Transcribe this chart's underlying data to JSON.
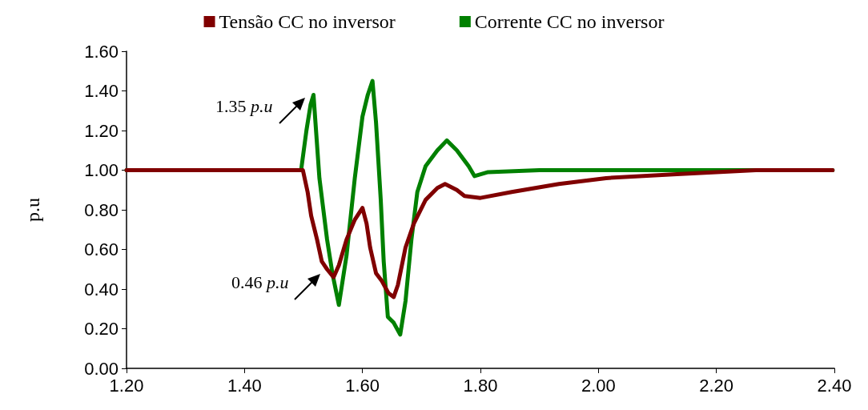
{
  "chart_data": {
    "type": "line",
    "ylabel": "p.u",
    "xlim": [
      1.2,
      2.4
    ],
    "xticks": [
      {
        "value": 1.2,
        "label": "1.20"
      },
      {
        "value": 1.4,
        "label": "1.40"
      },
      {
        "value": 1.6,
        "label": "1.60"
      },
      {
        "value": 1.8,
        "label": "1.80"
      },
      {
        "value": 2.0,
        "label": "2.00"
      },
      {
        "value": 2.2,
        "label": "2.20"
      },
      {
        "value": 2.4,
        "label": "2.40"
      }
    ],
    "ylim": [
      0,
      1.6
    ],
    "yticks": [
      {
        "value": 0,
        "label": "0.00"
      },
      {
        "value": 0.2,
        "label": "0.20"
      },
      {
        "value": 0.4,
        "label": "0.40"
      },
      {
        "value": 0.6,
        "label": "0.60"
      },
      {
        "value": 0.8,
        "label": "0.80"
      },
      {
        "value": 1.0,
        "label": "1.00"
      },
      {
        "value": 1.2,
        "label": "1.20"
      },
      {
        "value": 1.4,
        "label": "1.40"
      },
      {
        "value": 1.6,
        "label": "1.60"
      }
    ],
    "grid": false,
    "legend": "top",
    "marker": "none",
    "line_style": "solid",
    "series": [
      {
        "name": "Tensão CC no inversor",
        "color": "#800000",
        "x": [
          1.2,
          1.499,
          1.507,
          1.513,
          1.523,
          1.531,
          1.54,
          1.551,
          1.56,
          1.573,
          1.587,
          1.6,
          1.607,
          1.613,
          1.623,
          1.633,
          1.644,
          1.653,
          1.66,
          1.673,
          1.687,
          1.707,
          1.727,
          1.74,
          1.76,
          1.773,
          1.8,
          1.853,
          1.933,
          2.013,
          2.133,
          2.267,
          2.397
        ],
        "values": [
          1.0,
          1.0,
          0.89,
          0.77,
          0.65,
          0.54,
          0.5,
          0.46,
          0.52,
          0.65,
          0.75,
          0.81,
          0.73,
          0.61,
          0.48,
          0.44,
          0.38,
          0.36,
          0.42,
          0.61,
          0.73,
          0.85,
          0.91,
          0.93,
          0.9,
          0.87,
          0.86,
          0.89,
          0.93,
          0.96,
          0.98,
          1.0,
          1.0
        ]
      },
      {
        "name": "Corrente CC no inversor",
        "color": "#008000",
        "x": [
          1.2,
          1.496,
          1.505,
          1.512,
          1.517,
          1.527,
          1.54,
          1.549,
          1.56,
          1.573,
          1.587,
          1.6,
          1.609,
          1.617,
          1.623,
          1.631,
          1.636,
          1.643,
          1.653,
          1.664,
          1.673,
          1.683,
          1.693,
          1.707,
          1.727,
          1.743,
          1.76,
          1.78,
          1.79,
          1.813,
          1.9,
          2.0,
          2.2,
          2.397
        ],
        "values": [
          1.0,
          1.0,
          1.2,
          1.33,
          1.38,
          0.96,
          0.65,
          0.48,
          0.32,
          0.57,
          0.96,
          1.27,
          1.38,
          1.45,
          1.24,
          0.85,
          0.54,
          0.26,
          0.23,
          0.17,
          0.34,
          0.65,
          0.89,
          1.02,
          1.1,
          1.15,
          1.1,
          1.02,
          0.97,
          0.99,
          1.0,
          1.0,
          1.0,
          1.0
        ]
      }
    ],
    "annotations": [
      {
        "text": "1.35 p.u",
        "x": 1.513,
        "y": 1.35
      },
      {
        "text": "0.46 p.u",
        "x": 1.54,
        "y": 0.46
      }
    ]
  }
}
